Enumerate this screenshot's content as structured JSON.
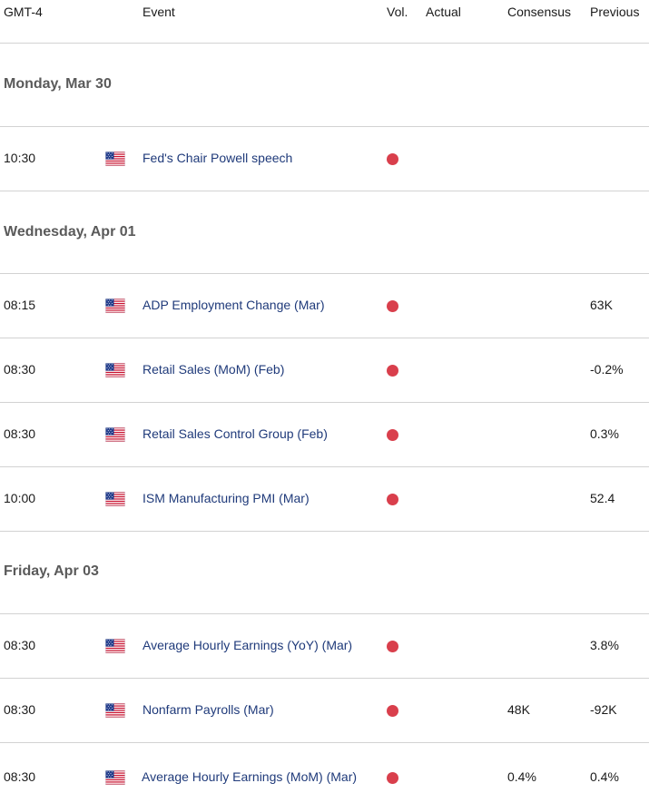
{
  "header": {
    "timezone": "GMT-4",
    "event": "Event",
    "vol": "Vol.",
    "actual": "Actual",
    "consensus": "Consensus",
    "previous": "Previous"
  },
  "days": [
    {
      "label": "Monday, Mar 30",
      "events": [
        {
          "time": "10:30",
          "country_icon": "us-flag-icon",
          "event": "Fed's Chair Powell speech",
          "volatility": "high",
          "actual": "",
          "consensus": "",
          "previous": ""
        }
      ]
    },
    {
      "label": "Wednesday, Apr 01",
      "events": [
        {
          "time": "08:15",
          "country_icon": "us-flag-icon",
          "event": "ADP Employment Change (Mar)",
          "volatility": "high",
          "actual": "",
          "consensus": "",
          "previous": "63K"
        },
        {
          "time": "08:30",
          "country_icon": "us-flag-icon",
          "event": "Retail Sales (MoM) (Feb)",
          "volatility": "high",
          "actual": "",
          "consensus": "",
          "previous": "-0.2%"
        },
        {
          "time": "08:30",
          "country_icon": "us-flag-icon",
          "event": "Retail Sales Control Group (Feb)",
          "volatility": "high",
          "actual": "",
          "consensus": "",
          "previous": "0.3%"
        },
        {
          "time": "10:00",
          "country_icon": "us-flag-icon",
          "event": "ISM Manufacturing PMI (Mar)",
          "volatility": "high",
          "actual": "",
          "consensus": "",
          "previous": "52.4"
        }
      ]
    },
    {
      "label": "Friday, Apr 03",
      "events": [
        {
          "time": "08:30",
          "country_icon": "us-flag-icon",
          "event": "Average Hourly Earnings (YoY) (Mar)",
          "volatility": "high",
          "actual": "",
          "consensus": "",
          "previous": "3.8%"
        },
        {
          "time": "08:30",
          "country_icon": "us-flag-icon",
          "event": "Nonfarm Payrolls (Mar)",
          "volatility": "high",
          "actual": "",
          "consensus": "48K",
          "previous": "-92K"
        },
        {
          "time": "08:30",
          "country_icon": "us-flag-icon",
          "event": "Average Hourly Earnings (MoM) (Mar)",
          "volatility": "high",
          "actual": "",
          "consensus": "0.4%",
          "previous": "0.4%"
        }
      ]
    }
  ],
  "colors": {
    "volatility_high": "#d93f4c",
    "event_text": "#1f3a7a",
    "divider": "#d2d2d2"
  }
}
